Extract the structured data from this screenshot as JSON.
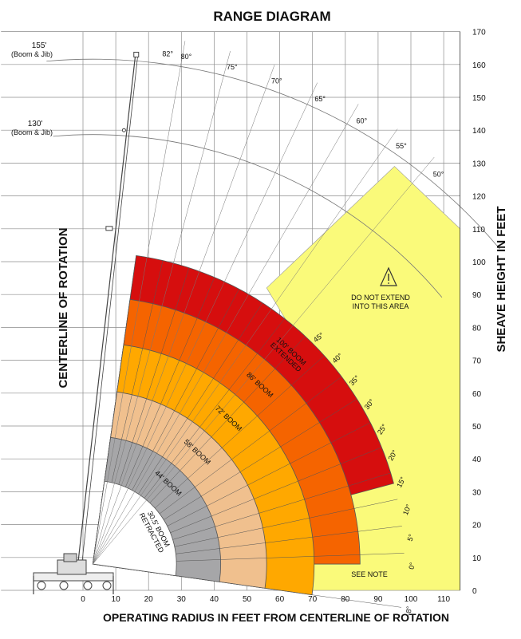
{
  "title": "RANGE DIAGRAM",
  "x_axis_title": "OPERATING RADIUS IN FEET FROM CENTERLINE OF ROTATION",
  "y_axis_title": "SHEAVE HEIGHT IN FEET",
  "centerline_title": "CENTERLINE OF ROTATION",
  "x_ticks": [
    "0",
    "10",
    "20",
    "30",
    "40",
    "50",
    "60",
    "70",
    "80",
    "90",
    "100",
    "110"
  ],
  "y_ticks": [
    "0",
    "10",
    "20",
    "30",
    "40",
    "50",
    "60",
    "70",
    "80",
    "90",
    "100",
    "110",
    "120",
    "130",
    "140",
    "150",
    "160",
    "170"
  ],
  "jib_labels": [
    {
      "length": "155'",
      "note": "(Boom & Jib)"
    },
    {
      "length": "130'",
      "note": "(Boom & Jib)"
    }
  ],
  "zones": [
    {
      "label": "30.5' BOOM",
      "label2": "RETRACTED",
      "color": "#ffffff"
    },
    {
      "label": "44' BOOM",
      "color": "#a6a6a8"
    },
    {
      "label": "58' BOOM",
      "color": "#f0c08e"
    },
    {
      "label": "72' BOOM",
      "color": "#ffa800"
    },
    {
      "label": "86' BOOM",
      "color": "#f56400"
    },
    {
      "label": "100' BOOM",
      "label2": "EXTENDED",
      "color": "#d60e0e"
    }
  ],
  "outer_angle_labels": [
    "82°",
    "80°",
    "75°",
    "70°",
    "65°",
    "60°",
    "55°",
    "50°"
  ],
  "inner_angle_labels": [
    "45°",
    "40°",
    "35°",
    "30°",
    "25°",
    "20°",
    "15°",
    "10°",
    "5°",
    "0°",
    "-8°"
  ],
  "warning": {
    "line1": "DO NOT EXTEND",
    "line2": "INTO THIS AREA",
    "icon": "warning-triangle-icon"
  },
  "see_note": "SEE NOTE",
  "colors": {
    "restricted_area": "#fafa7a",
    "grid": "#8c8c8c",
    "arc": "#777777",
    "boom": "#444444"
  }
}
